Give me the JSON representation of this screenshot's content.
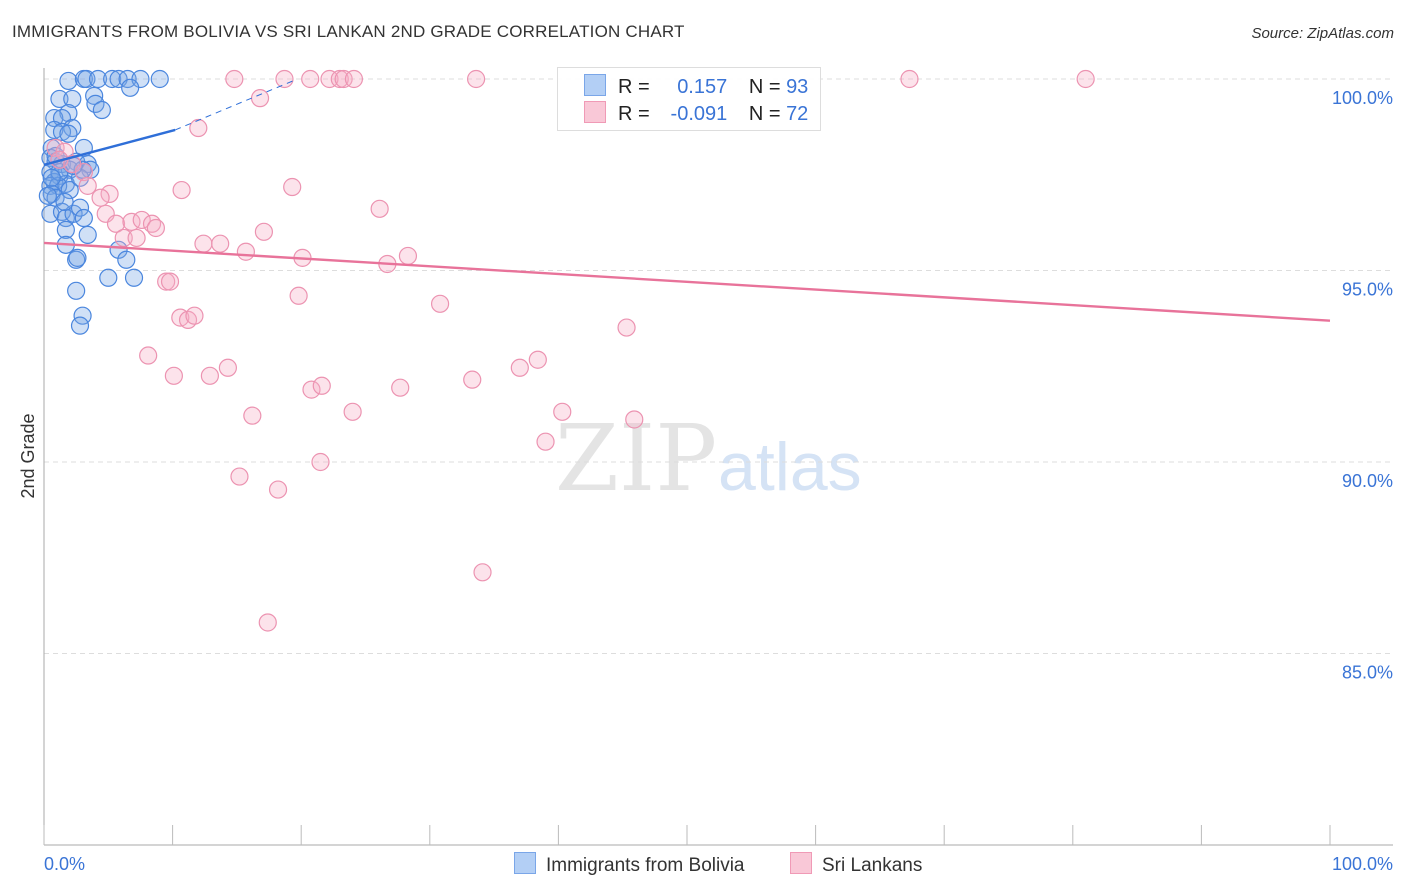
{
  "chart_data": {
    "type": "scatter",
    "title": "IMMIGRANTS FROM BOLIVIA VS SRI LANKAN 2ND GRADE CORRELATION CHART",
    "source": "Source: ZipAtlas.com",
    "xlabel": "",
    "ylabel": "2nd Grade",
    "xlim": [
      0,
      100
    ],
    "ylim": [
      80,
      100.3
    ],
    "x_tick_labels": [
      "0.0%",
      "100.0%"
    ],
    "y_ticks": [
      100,
      95,
      90,
      85
    ],
    "y_tick_labels": [
      "100.0%",
      "95.0%",
      "90.0%",
      "85.0%"
    ],
    "grid": true,
    "watermark": "ZIPatlas",
    "colors": {
      "blue": "#3b7ddd",
      "pink": "#e8739a",
      "blue_fill": "#a9c8f0",
      "pink_fill": "#f7bfd0"
    },
    "legend": [
      {
        "name": "Immigrants from Bolivia",
        "r_label": "R =",
        "r": "0.157",
        "n_label": "N =",
        "n": "93"
      },
      {
        "name": "Sri Lankans",
        "r_label": "R =",
        "r": "-0.091",
        "n_label": "N =",
        "n": "72"
      }
    ],
    "series": [
      {
        "name": "Immigrants from Bolivia",
        "color": "#3b7ddd",
        "trend": {
          "solid": [
            [
              0,
              97.76
            ],
            [
              10.2,
              98.67
            ]
          ],
          "dashed": [
            [
              10.2,
              98.67
            ],
            [
              19.5,
              99.97
            ]
          ]
        },
        "points": [
          [
            1.9,
            99.95
          ],
          [
            3.1,
            100
          ],
          [
            3.3,
            100
          ],
          [
            4.2,
            100
          ],
          [
            5.3,
            100
          ],
          [
            5.8,
            100
          ],
          [
            6.5,
            100
          ],
          [
            7.5,
            100
          ],
          [
            9.0,
            100
          ],
          [
            6.7,
            99.77
          ],
          [
            1.2,
            99.48
          ],
          [
            2.2,
            99.48
          ],
          [
            3.9,
            99.56
          ],
          [
            4.0,
            99.35
          ],
          [
            4.5,
            99.19
          ],
          [
            1.9,
            99.11
          ],
          [
            0.8,
            98.98
          ],
          [
            1.4,
            98.98
          ],
          [
            2.2,
            98.72
          ],
          [
            0.8,
            98.67
          ],
          [
            1.4,
            98.62
          ],
          [
            1.9,
            98.57
          ],
          [
            0.6,
            98.2
          ],
          [
            3.1,
            98.2
          ],
          [
            0.5,
            97.94
          ],
          [
            0.9,
            97.84
          ],
          [
            1.4,
            97.78
          ],
          [
            2.5,
            97.84
          ],
          [
            3.4,
            97.78
          ],
          [
            3.6,
            97.63
          ],
          [
            2.0,
            97.63
          ],
          [
            0.5,
            97.57
          ],
          [
            1.2,
            97.47
          ],
          [
            0.8,
            97.31
          ],
          [
            1.7,
            97.26
          ],
          [
            0.5,
            97.21
          ],
          [
            1.1,
            97.21
          ],
          [
            0.6,
            97.0
          ],
          [
            0.9,
            96.9
          ],
          [
            2.0,
            97.1
          ],
          [
            2.8,
            97.42
          ],
          [
            3.0,
            97.63
          ],
          [
            0.5,
            96.48
          ],
          [
            1.4,
            96.53
          ],
          [
            1.7,
            96.37
          ],
          [
            2.3,
            96.48
          ],
          [
            2.8,
            96.64
          ],
          [
            3.1,
            96.37
          ],
          [
            1.7,
            96.06
          ],
          [
            3.4,
            95.93
          ],
          [
            1.7,
            95.67
          ],
          [
            5.8,
            95.54
          ],
          [
            6.4,
            95.28
          ],
          [
            2.5,
            95.28
          ],
          [
            2.6,
            95.33
          ],
          [
            5.0,
            94.81
          ],
          [
            7.0,
            94.81
          ],
          [
            2.5,
            94.47
          ],
          [
            3.0,
            93.82
          ],
          [
            2.8,
            93.56
          ],
          [
            0.3,
            96.95
          ],
          [
            1.6,
            96.79
          ],
          [
            2.3,
            97.73
          ],
          [
            0.9,
            97.99
          ],
          [
            1.2,
            97.57
          ],
          [
            0.6,
            97.42
          ]
        ]
      },
      {
        "name": "Sri Lankans",
        "color": "#e8739a",
        "trend": {
          "solid": [
            [
              0,
              95.72
            ],
            [
              100,
              93.69
            ]
          ]
        },
        "points": [
          [
            14.8,
            100
          ],
          [
            18.7,
            100
          ],
          [
            20.7,
            100
          ],
          [
            22.2,
            100
          ],
          [
            23.0,
            100
          ],
          [
            23.3,
            100
          ],
          [
            24.1,
            100
          ],
          [
            33.6,
            100
          ],
          [
            67.3,
            100
          ],
          [
            81.0,
            100
          ],
          [
            16.8,
            99.5
          ],
          [
            12.0,
            98.72
          ],
          [
            0.9,
            98.2
          ],
          [
            1.6,
            98.1
          ],
          [
            1.2,
            97.89
          ],
          [
            2.2,
            97.78
          ],
          [
            3.1,
            97.57
          ],
          [
            3.4,
            97.21
          ],
          [
            5.1,
            97.0
          ],
          [
            4.4,
            96.9
          ],
          [
            10.7,
            97.1
          ],
          [
            19.3,
            97.18
          ],
          [
            26.1,
            96.61
          ],
          [
            4.8,
            96.48
          ],
          [
            5.6,
            96.22
          ],
          [
            6.8,
            96.27
          ],
          [
            7.6,
            96.32
          ],
          [
            8.4,
            96.22
          ],
          [
            8.7,
            96.11
          ],
          [
            17.1,
            96.01
          ],
          [
            6.2,
            95.85
          ],
          [
            7.2,
            95.85
          ],
          [
            12.4,
            95.7
          ],
          [
            13.7,
            95.7
          ],
          [
            15.7,
            95.49
          ],
          [
            20.1,
            95.33
          ],
          [
            26.7,
            95.17
          ],
          [
            28.3,
            95.38
          ],
          [
            9.5,
            94.71
          ],
          [
            9.8,
            94.71
          ],
          [
            19.8,
            94.34
          ],
          [
            30.8,
            94.13
          ],
          [
            10.6,
            93.77
          ],
          [
            11.2,
            93.71
          ],
          [
            11.7,
            93.82
          ],
          [
            45.3,
            93.51
          ],
          [
            8.1,
            92.78
          ],
          [
            14.3,
            92.46
          ],
          [
            10.1,
            92.25
          ],
          [
            12.9,
            92.25
          ],
          [
            20.8,
            91.89
          ],
          [
            21.6,
            91.99
          ],
          [
            27.7,
            91.94
          ],
          [
            33.3,
            92.15
          ],
          [
            37.0,
            92.46
          ],
          [
            38.4,
            92.67
          ],
          [
            24.0,
            91.31
          ],
          [
            16.2,
            91.21
          ],
          [
            40.3,
            91.31
          ],
          [
            45.9,
            91.11
          ],
          [
            39.0,
            90.53
          ],
          [
            21.5,
            90.0
          ],
          [
            15.2,
            89.62
          ],
          [
            18.2,
            89.28
          ],
          [
            34.1,
            87.12
          ],
          [
            17.4,
            85.81
          ]
        ]
      }
    ]
  }
}
